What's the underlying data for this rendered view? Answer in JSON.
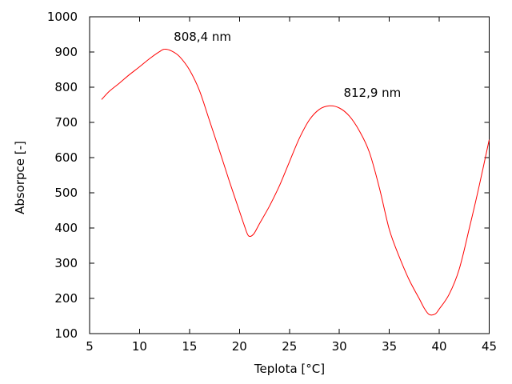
{
  "chart_data": {
    "type": "line",
    "title": "",
    "xlabel": "Teplota [°C]",
    "ylabel": "Absorpce [-]",
    "xlim": [
      5,
      45
    ],
    "ylim": [
      100,
      1000
    ],
    "x_ticks": [
      5,
      10,
      15,
      20,
      25,
      30,
      35,
      40,
      45
    ],
    "y_ticks": [
      100,
      200,
      300,
      400,
      500,
      600,
      700,
      800,
      900,
      1000
    ],
    "grid": false,
    "legend": "none",
    "axis_color": "#000000",
    "series": [
      {
        "name": "absorpce",
        "color": "#ff0000",
        "points": [
          [
            6.2,
            765
          ],
          [
            7,
            789
          ],
          [
            8,
            812
          ],
          [
            9,
            836
          ],
          [
            10,
            858
          ],
          [
            11,
            881
          ],
          [
            12,
            901
          ],
          [
            12.5,
            908
          ],
          [
            13.2,
            903
          ],
          [
            14,
            887
          ],
          [
            15,
            849
          ],
          [
            16,
            790
          ],
          [
            17,
            705
          ],
          [
            18,
            620
          ],
          [
            19,
            532
          ],
          [
            20,
            448
          ],
          [
            20.5,
            406
          ],
          [
            20.9,
            378
          ],
          [
            21.4,
            382
          ],
          [
            22,
            412
          ],
          [
            23,
            462
          ],
          [
            24,
            520
          ],
          [
            25,
            588
          ],
          [
            26,
            655
          ],
          [
            27,
            707
          ],
          [
            28,
            737
          ],
          [
            29,
            747
          ],
          [
            30,
            741
          ],
          [
            31,
            718
          ],
          [
            32,
            676
          ],
          [
            33,
            616
          ],
          [
            34,
            515
          ],
          [
            35,
            396
          ],
          [
            36,
            318
          ],
          [
            37,
            252
          ],
          [
            38,
            199
          ],
          [
            38.5,
            172
          ],
          [
            39,
            154
          ],
          [
            39.6,
            156
          ],
          [
            40,
            170
          ],
          [
            41,
            212
          ],
          [
            42,
            283
          ],
          [
            43,
            398
          ],
          [
            44,
            520
          ],
          [
            45,
            651
          ]
        ]
      }
    ],
    "annotations": [
      {
        "text": "808,4 nm",
        "x": 16.3,
        "y": 944
      },
      {
        "text": "812,9 nm",
        "x": 33.3,
        "y": 783
      }
    ]
  }
}
